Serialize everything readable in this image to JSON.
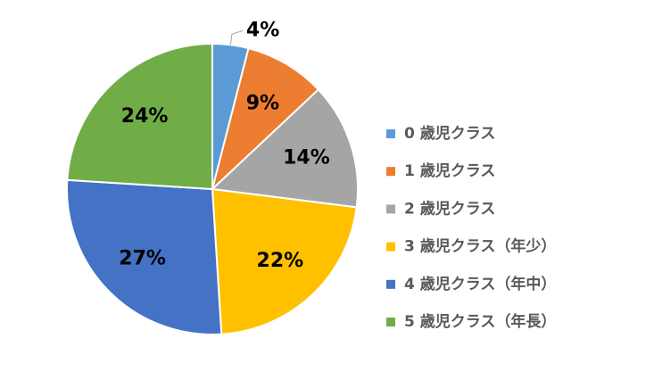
{
  "chart_data": {
    "type": "pie",
    "categories": [
      "0 歳児クラス",
      "1 歳児クラス",
      "2 歳児クラス",
      "3 歳児クラス（年少）",
      "4 歳児クラス（年中）",
      "5 歳児クラス（年長）"
    ],
    "values": [
      4,
      9,
      14,
      22,
      27,
      24
    ],
    "value_labels": [
      "4%",
      "9%",
      "14%",
      "22%",
      "27%",
      "24%"
    ],
    "colors": [
      "#5b9bd5",
      "#ed7d31",
      "#a5a5a5",
      "#ffc000",
      "#4472c4",
      "#70ad47"
    ],
    "legend": "right"
  }
}
